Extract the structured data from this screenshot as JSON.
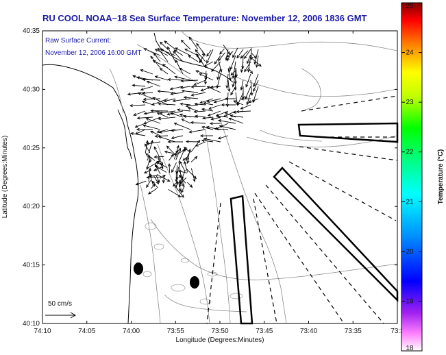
{
  "chart_data": {
    "type": "map-vector-field",
    "title": "RU COOL  NOAA–18  Sea Surface Temperature:  November 12, 2006 1836 GMT",
    "subtitle_line1": "Raw Surface Current:",
    "subtitle_line2": "November 12, 2006 16:00 GMT",
    "xlabel": "Longitude (Degrees:Minutes)",
    "ylabel": "Latitude (Degrees:Minutes)",
    "x_ticks": [
      "74:10",
      "74:05",
      "74:00",
      "73:55",
      "73:50",
      "73:45",
      "73:40",
      "73:35",
      "73:3"
    ],
    "y_ticks": [
      "40:35",
      "40:30",
      "40:25",
      "40:20",
      "40:15",
      "40:10"
    ],
    "xlim": [
      "74:10",
      "73:30"
    ],
    "ylim": [
      "40:10",
      "40:35"
    ],
    "scale_label": "50 cm/s",
    "colorbar": {
      "label": "Temperature (°C)",
      "min": 18,
      "max": 25,
      "ticks": [
        "25",
        "24",
        "23",
        "22",
        "21",
        "20",
        "19",
        "18"
      ]
    }
  }
}
